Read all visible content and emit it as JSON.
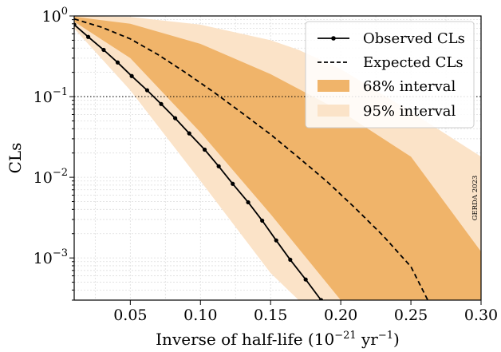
{
  "chart_data": {
    "type": "line",
    "title": "",
    "xlabel": "Inverse of half-life (10⁻²¹ yr⁻¹)",
    "ylabel": "CLs",
    "xlim": [
      0.01,
      0.3
    ],
    "ylim": [
      0.0003,
      1.0
    ],
    "y_scale": "log",
    "x_ticks": [
      0.05,
      0.1,
      0.15,
      0.2,
      0.25,
      0.3
    ],
    "x_tick_labels": [
      "0.05",
      "0.10",
      "0.15",
      "0.20",
      "0.25",
      "0.30"
    ],
    "y_ticks": [
      1,
      0.1,
      0.01,
      0.001
    ],
    "y_tick_labels": [
      {
        "base": "10",
        "exp": "0"
      },
      {
        "base": "10",
        "exp": "−1"
      },
      {
        "base": "10",
        "exp": "−2"
      },
      {
        "base": "10",
        "exp": "−3"
      }
    ],
    "grid": true,
    "legend_position": "top-right",
    "reference_line": {
      "y": 0.1,
      "style": "dotted"
    },
    "series": [
      {
        "name": "Observed CLs",
        "style": "solid-dots",
        "color": "#000000",
        "x": [
          0.01,
          0.02,
          0.031,
          0.041,
          0.051,
          0.062,
          0.072,
          0.082,
          0.092,
          0.103,
          0.113,
          0.123,
          0.134,
          0.144,
          0.154,
          0.164,
          0.175,
          0.186
        ],
        "y": [
          0.78,
          0.55,
          0.38,
          0.265,
          0.18,
          0.12,
          0.081,
          0.054,
          0.035,
          0.022,
          0.0137,
          0.0083,
          0.0049,
          0.0029,
          0.00165,
          0.00095,
          0.00054,
          0.0003
        ]
      },
      {
        "name": "Expected CLs",
        "style": "dashed",
        "color": "#000000",
        "x": [
          0.01,
          0.03,
          0.05,
          0.07,
          0.09,
          0.11,
          0.13,
          0.15,
          0.17,
          0.19,
          0.21,
          0.23,
          0.25,
          0.262
        ],
        "y": [
          0.92,
          0.72,
          0.52,
          0.33,
          0.195,
          0.112,
          0.062,
          0.034,
          0.0175,
          0.0089,
          0.0042,
          0.0019,
          0.00078,
          0.0003
        ]
      }
    ],
    "bands": [
      {
        "name": "68% interval",
        "color": "#f0b46a",
        "x": [
          0.01,
          0.05,
          0.1,
          0.15,
          0.2,
          0.25,
          0.3
        ],
        "lower": [
          0.85,
          0.3,
          0.036,
          0.0035,
          0.0003,
          0.0003,
          0.0003
        ],
        "upper": [
          0.98,
          0.8,
          0.45,
          0.19,
          0.066,
          0.018,
          0.0012
        ]
      },
      {
        "name": "95% interval",
        "color": "#fbe3c8",
        "x": [
          0.01,
          0.05,
          0.1,
          0.15,
          0.17,
          0.2,
          0.25,
          0.3
        ],
        "lower": [
          0.7,
          0.12,
          0.009,
          0.00065,
          0.0003,
          0.0003,
          0.0003,
          0.0003
        ],
        "upper": [
          1.0,
          0.97,
          0.78,
          0.5,
          0.38,
          0.22,
          0.065,
          0.018
        ]
      }
    ],
    "watermark": "GERDA 2023"
  }
}
